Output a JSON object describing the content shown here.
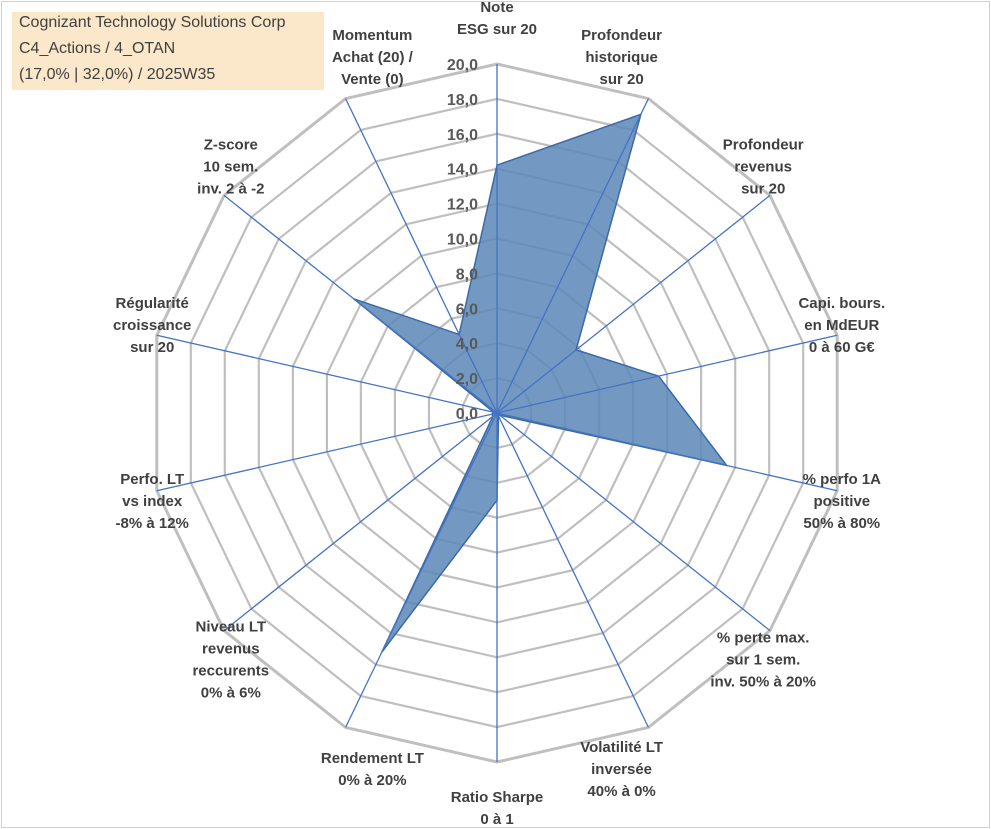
{
  "title_box": {
    "line1": "Cognizant Technology Solutions Corp",
    "line2": "C4_Actions / 4_OTAN",
    "line3": "(17,0% | 32,0%) / 2025W35"
  },
  "colors": {
    "fill": "#5b87b8",
    "stroke": "#3a6aa6",
    "axis": "#4472c4",
    "grid": "#bfbfbf",
    "title_bg": "#fbe5c4"
  },
  "chart_data": {
    "type": "radar",
    "r_range": [
      0,
      20
    ],
    "r_ticks": [
      "0,0",
      "2,0",
      "4,0",
      "6,0",
      "8,0",
      "10,0",
      "12,0",
      "14,0",
      "16,0",
      "18,0",
      "20,0"
    ],
    "grid": true,
    "legend": "none",
    "categories": [
      [
        "Note",
        "ESG sur 20"
      ],
      [
        "Profondeur",
        "historique",
        "sur 20"
      ],
      [
        "Profondeur",
        "revenus",
        "sur 20"
      ],
      [
        "Capi. bours.",
        "en MdEUR",
        "0 à 60 G€"
      ],
      [
        "% perfo 1A",
        "positive",
        "50% à 80%"
      ],
      [
        "% perte max.",
        "sur 1 sem.",
        "inv. 50% à 20%"
      ],
      [
        "Volatilité LT",
        "inversée",
        "40% à 0%"
      ],
      [
        "Ratio Sharpe",
        "0 à 1"
      ],
      [
        "Rendement LT",
        "0% à 20%"
      ],
      [
        "Niveau LT",
        "revenus",
        "reccurents",
        "0% à 6%"
      ],
      [
        "Perfo. LT",
        "vs index",
        "-8% à 12%"
      ],
      [
        "Régularité",
        "croissance",
        "sur 20"
      ],
      [
        "Z-score",
        "10 sem.",
        "inv. 2 à -2"
      ],
      [
        "Momentum",
        "Achat (20) /",
        "Vente (0)"
      ]
    ],
    "series": [
      {
        "values": [
          14.2,
          19.0,
          5.8,
          9.5,
          13.5,
          0.2,
          0.2,
          5.0,
          15.2,
          0.3,
          0.3,
          0.2,
          10.5,
          5.0
        ]
      }
    ]
  }
}
